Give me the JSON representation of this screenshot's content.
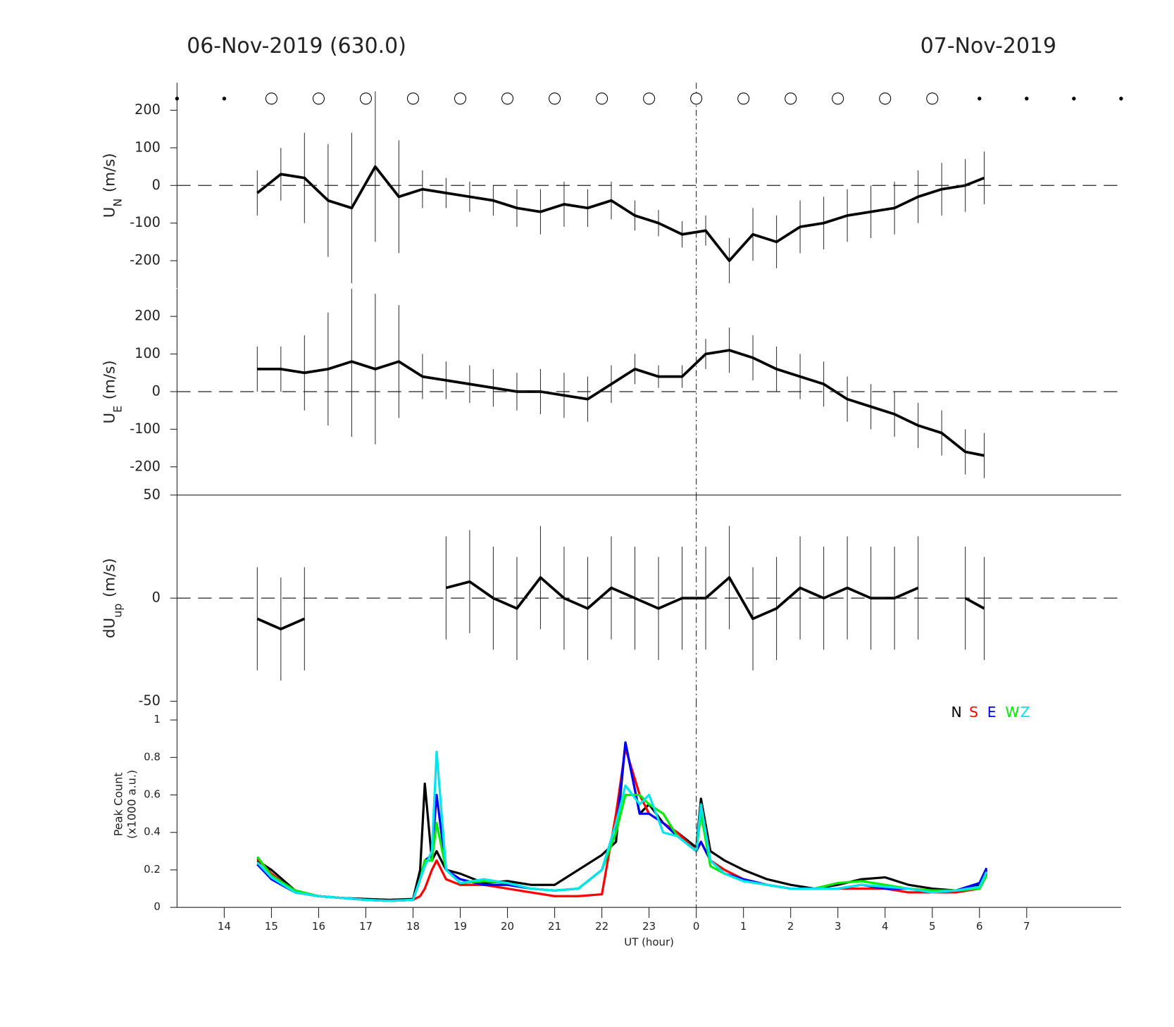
{
  "header": {
    "left": "06-Nov-2019 (630.0)",
    "right": "07-Nov-2019"
  },
  "chart_data": [
    {
      "type": "errorbar-line",
      "y_label": {
        "main": "U",
        "sub": "N",
        "unit": "(m/s)"
      },
      "xlim": [
        13,
        33
      ],
      "ylim": [
        -273,
        273
      ],
      "yticks": [
        -200,
        -100,
        0,
        100,
        200
      ],
      "hline": 0,
      "vline": 24,
      "hourly_markers": {
        "x": [
          13,
          14,
          15,
          16,
          17,
          18,
          19,
          20,
          21,
          22,
          23,
          24,
          25,
          26,
          27,
          28,
          29,
          30,
          31,
          32,
          33
        ],
        "open": [
          false,
          false,
          true,
          true,
          true,
          true,
          true,
          true,
          true,
          true,
          true,
          true,
          true,
          true,
          true,
          true,
          true,
          false,
          false,
          false,
          false
        ]
      },
      "x": [
        14.7,
        15.2,
        15.7,
        16.2,
        16.7,
        17.2,
        17.7,
        18.2,
        18.7,
        19.2,
        19.7,
        20.2,
        20.7,
        21.2,
        21.7,
        22.2,
        22.7,
        23.2,
        23.7,
        24.2,
        24.7,
        25.2,
        25.7,
        26.2,
        26.7,
        27.2,
        27.7,
        28.2,
        28.7,
        29.2,
        29.7,
        30.1
      ],
      "series": [
        {
          "color": "#000000",
          "values": [
            -20,
            30,
            20,
            -40,
            -60,
            50,
            -30,
            -10,
            -20,
            -30,
            -40,
            -60,
            -70,
            -50,
            -60,
            -40,
            -80,
            -100,
            -130,
            -120,
            -200,
            -130,
            -150,
            -110,
            -100,
            -80,
            -70,
            -60,
            -30,
            -10,
            0,
            20
          ],
          "errors": [
            60,
            70,
            120,
            150,
            200,
            200,
            150,
            50,
            40,
            40,
            40,
            50,
            60,
            60,
            50,
            50,
            40,
            35,
            35,
            40,
            60,
            70,
            70,
            70,
            70,
            70,
            70,
            70,
            70,
            70,
            70,
            70
          ]
        }
      ]
    },
    {
      "type": "errorbar-line",
      "y_label": {
        "main": "U",
        "sub": "E",
        "unit": "(m/s)"
      },
      "xlim": [
        13,
        33
      ],
      "ylim": [
        -275,
        273
      ],
      "yticks": [
        -200,
        -100,
        0,
        100,
        200
      ],
      "hline": 0,
      "vline": 24,
      "x": [
        14.7,
        15.2,
        15.7,
        16.2,
        16.7,
        17.2,
        17.7,
        18.2,
        18.7,
        19.2,
        19.7,
        20.2,
        20.7,
        21.2,
        21.7,
        22.2,
        22.7,
        23.2,
        23.7,
        24.2,
        24.7,
        25.2,
        25.7,
        26.2,
        26.7,
        27.2,
        27.7,
        28.2,
        28.7,
        29.2,
        29.7,
        30.1
      ],
      "series": [
        {
          "color": "#000000",
          "values": [
            60,
            60,
            50,
            60,
            80,
            60,
            80,
            40,
            30,
            20,
            10,
            0,
            0,
            -10,
            -20,
            20,
            60,
            40,
            40,
            100,
            110,
            90,
            60,
            40,
            20,
            -20,
            -40,
            -60,
            -90,
            -110,
            -160,
            -170
          ],
          "errors": [
            60,
            60,
            100,
            150,
            200,
            200,
            150,
            60,
            50,
            50,
            50,
            50,
            60,
            60,
            60,
            50,
            40,
            30,
            30,
            40,
            60,
            60,
            60,
            60,
            60,
            60,
            60,
            60,
            60,
            60,
            60,
            60
          ]
        }
      ]
    },
    {
      "type": "errorbar-line",
      "y_label": {
        "main": "dU",
        "sub": "up",
        "unit": "(m/s)"
      },
      "xlim": [
        13,
        33
      ],
      "ylim": [
        -50,
        50
      ],
      "yticks": [
        -50,
        0,
        50
      ],
      "hline": 0,
      "vline": 24,
      "x": [
        14.7,
        15.2,
        15.7,
        16.2,
        16.7,
        17.2,
        17.7,
        18.2,
        18.7,
        19.2,
        19.7,
        20.2,
        20.7,
        21.2,
        21.7,
        22.2,
        22.7,
        23.2,
        23.7,
        24.2,
        24.7,
        25.2,
        25.7,
        26.2,
        26.7,
        27.2,
        27.7,
        28.2,
        28.7,
        29.2,
        29.7,
        30.1
      ],
      "series": [
        {
          "color": "#000000",
          "values": [
            -10,
            -15,
            -10,
            null,
            null,
            null,
            null,
            null,
            5,
            8,
            0,
            -5,
            10,
            0,
            -5,
            5,
            0,
            -5,
            0,
            0,
            10,
            -10,
            -5,
            5,
            0,
            5,
            0,
            0,
            5,
            null,
            0,
            -5
          ],
          "errors": [
            25,
            25,
            25,
            null,
            null,
            null,
            null,
            null,
            25,
            25,
            25,
            25,
            25,
            25,
            25,
            25,
            25,
            25,
            25,
            25,
            25,
            25,
            25,
            25,
            25,
            25,
            25,
            25,
            25,
            null,
            25,
            25
          ]
        }
      ]
    },
    {
      "type": "line",
      "y_label": {
        "line1": "Peak Count",
        "line2": "(x1000 a.u.)"
      },
      "x_label": "UT (hour)",
      "xlim": [
        13,
        33
      ],
      "ylim": [
        0,
        1.1
      ],
      "yticks": [
        0,
        0.2,
        0.4,
        0.6,
        0.8,
        1
      ],
      "vline": 24,
      "xticks": [
        14,
        15,
        16,
        17,
        18,
        19,
        20,
        21,
        22,
        23,
        {
          "value": 24,
          "label": "0"
        },
        {
          "value": 25,
          "label": "1"
        },
        {
          "value": 26,
          "label": "2"
        },
        {
          "value": 27,
          "label": "3"
        },
        {
          "value": 28,
          "label": "4"
        },
        {
          "value": 29,
          "label": "5"
        },
        {
          "value": 30,
          "label": "6"
        },
        {
          "value": 31,
          "label": "7"
        }
      ],
      "x": [
        14.7,
        15,
        15.5,
        16,
        16.5,
        17,
        17.5,
        18,
        18.15,
        18.25,
        18.4,
        18.5,
        18.7,
        19,
        19.5,
        20,
        20.5,
        21,
        21.5,
        22,
        22.3,
        22.5,
        22.8,
        23,
        23.3,
        23.6,
        24,
        24.1,
        24.3,
        24.6,
        25,
        25.5,
        26,
        26.5,
        27,
        27.5,
        28,
        28.5,
        29,
        29.5,
        30,
        30.15
      ],
      "series": [
        {
          "name": "N",
          "color": "#000000",
          "values": [
            0.25,
            0.2,
            0.09,
            0.06,
            0.05,
            0.045,
            0.04,
            0.045,
            0.2,
            0.66,
            0.25,
            0.3,
            0.2,
            0.18,
            0.13,
            0.14,
            0.12,
            0.12,
            0.2,
            0.28,
            0.35,
            0.88,
            0.5,
            0.55,
            0.45,
            0.4,
            0.32,
            0.58,
            0.3,
            0.25,
            0.2,
            0.15,
            0.12,
            0.1,
            0.12,
            0.15,
            0.16,
            0.12,
            0.1,
            0.09,
            0.12,
            0.2
          ]
        },
        {
          "name": "S",
          "color": "#ff0000",
          "values": [
            0.26,
            0.18,
            0.08,
            0.06,
            0.05,
            0.04,
            0.035,
            0.04,
            0.06,
            0.1,
            0.2,
            0.25,
            0.15,
            0.12,
            0.12,
            0.1,
            0.08,
            0.06,
            0.06,
            0.07,
            0.5,
            0.85,
            0.6,
            0.5,
            0.45,
            0.4,
            0.3,
            0.35,
            0.25,
            0.2,
            0.15,
            0.12,
            0.1,
            0.1,
            0.1,
            0.1,
            0.1,
            0.08,
            0.08,
            0.08,
            0.1,
            0.18
          ]
        },
        {
          "name": "E",
          "color": "#0000ff",
          "values": [
            0.23,
            0.15,
            0.08,
            0.06,
            0.05,
            0.04,
            0.035,
            0.04,
            0.15,
            0.25,
            0.28,
            0.6,
            0.2,
            0.15,
            0.12,
            0.12,
            0.1,
            0.09,
            0.1,
            0.2,
            0.4,
            0.88,
            0.5,
            0.5,
            0.45,
            0.38,
            0.3,
            0.35,
            0.25,
            0.18,
            0.15,
            0.12,
            0.1,
            0.1,
            0.1,
            0.12,
            0.1,
            0.1,
            0.08,
            0.09,
            0.13,
            0.21
          ]
        },
        {
          "name": "W",
          "color": "#00ee00",
          "values": [
            0.27,
            0.17,
            0.09,
            0.06,
            0.05,
            0.04,
            0.035,
            0.04,
            0.15,
            0.25,
            0.25,
            0.45,
            0.2,
            0.13,
            0.14,
            0.13,
            0.1,
            0.09,
            0.1,
            0.2,
            0.4,
            0.6,
            0.6,
            0.55,
            0.5,
            0.38,
            0.3,
            0.5,
            0.22,
            0.18,
            0.14,
            0.12,
            0.1,
            0.1,
            0.13,
            0.14,
            0.12,
            0.1,
            0.09,
            0.09,
            0.1,
            0.17
          ]
        },
        {
          "name": "Z",
          "color": "#00e5ee",
          "values": [
            0.24,
            0.16,
            0.08,
            0.06,
            0.05,
            0.04,
            0.035,
            0.04,
            0.15,
            0.22,
            0.3,
            0.83,
            0.2,
            0.13,
            0.15,
            0.13,
            0.1,
            0.09,
            0.1,
            0.2,
            0.45,
            0.65,
            0.55,
            0.6,
            0.4,
            0.38,
            0.3,
            0.55,
            0.25,
            0.18,
            0.14,
            0.12,
            0.1,
            0.1,
            0.1,
            0.12,
            0.11,
            0.1,
            0.08,
            0.09,
            0.11,
            0.19
          ]
        }
      ]
    }
  ]
}
